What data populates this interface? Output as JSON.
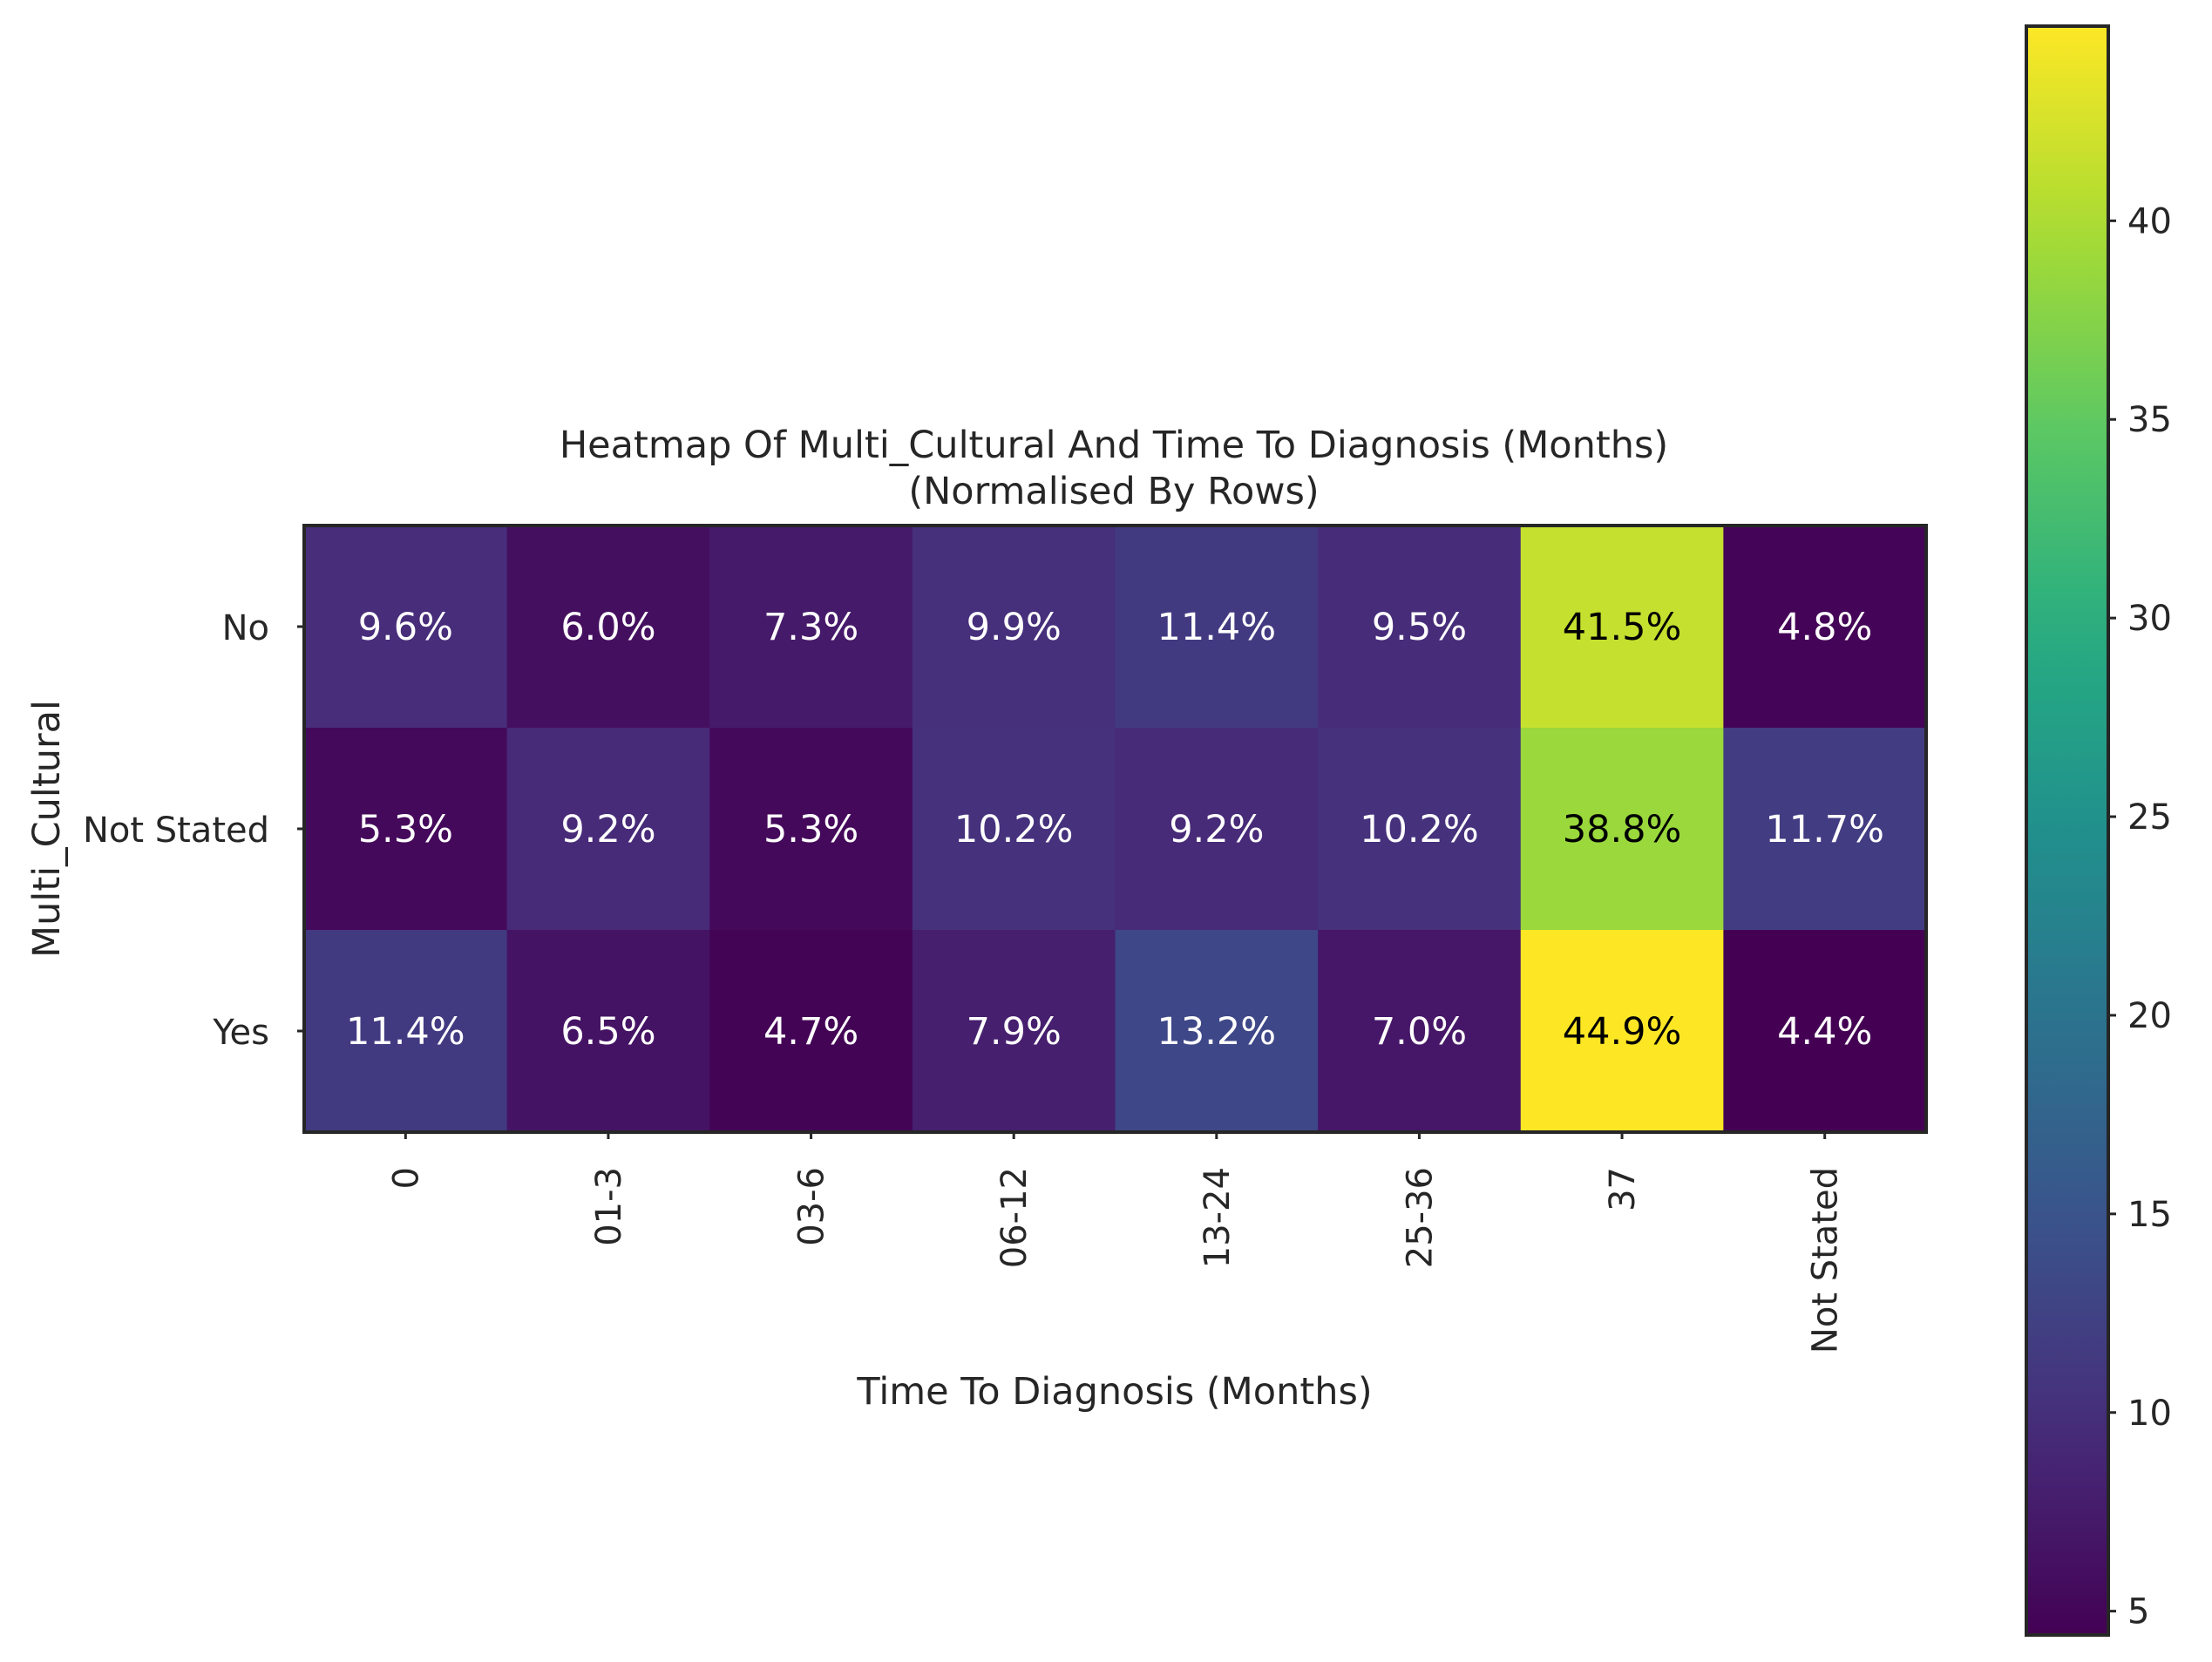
{
  "chart_data": {
    "type": "heatmap",
    "title": "Heatmap Of Multi_Cultural And Time To Diagnosis (Months)",
    "subtitle": "(Normalised By Rows)",
    "xlabel": "Time To Diagnosis (Months)",
    "ylabel": "Multi_Cultural",
    "x_categories": [
      "0",
      "01-3",
      "03-6",
      "06-12",
      "13-24",
      "25-36",
      "37",
      "Not Stated"
    ],
    "y_categories": [
      "No",
      "Not Stated",
      "Yes"
    ],
    "values": [
      [
        9.6,
        6.0,
        7.3,
        9.9,
        11.4,
        9.5,
        41.5,
        4.8
      ],
      [
        5.3,
        9.2,
        5.3,
        10.2,
        9.2,
        10.2,
        38.8,
        11.7
      ],
      [
        11.4,
        6.5,
        4.7,
        7.9,
        13.2,
        7.0,
        44.9,
        4.4
      ]
    ],
    "cell_labels": [
      [
        "9.6%",
        "6.0%",
        "7.3%",
        "9.9%",
        "11.4%",
        "9.5%",
        "41.5%",
        "4.8%"
      ],
      [
        "5.3%",
        "9.2%",
        "5.3%",
        "10.2%",
        "9.2%",
        "10.2%",
        "38.8%",
        "11.7%"
      ],
      [
        "11.4%",
        "6.5%",
        "4.7%",
        "7.9%",
        "13.2%",
        "7.0%",
        "44.9%",
        "4.4%"
      ]
    ],
    "colormap": "viridis",
    "colorbar": {
      "range": [
        4.4,
        44.9
      ],
      "ticks": [
        5,
        10,
        15,
        20,
        25,
        30,
        35,
        40
      ],
      "tick_labels": [
        "5",
        "10",
        "15",
        "20",
        "25",
        "30",
        "35",
        "40"
      ]
    }
  }
}
